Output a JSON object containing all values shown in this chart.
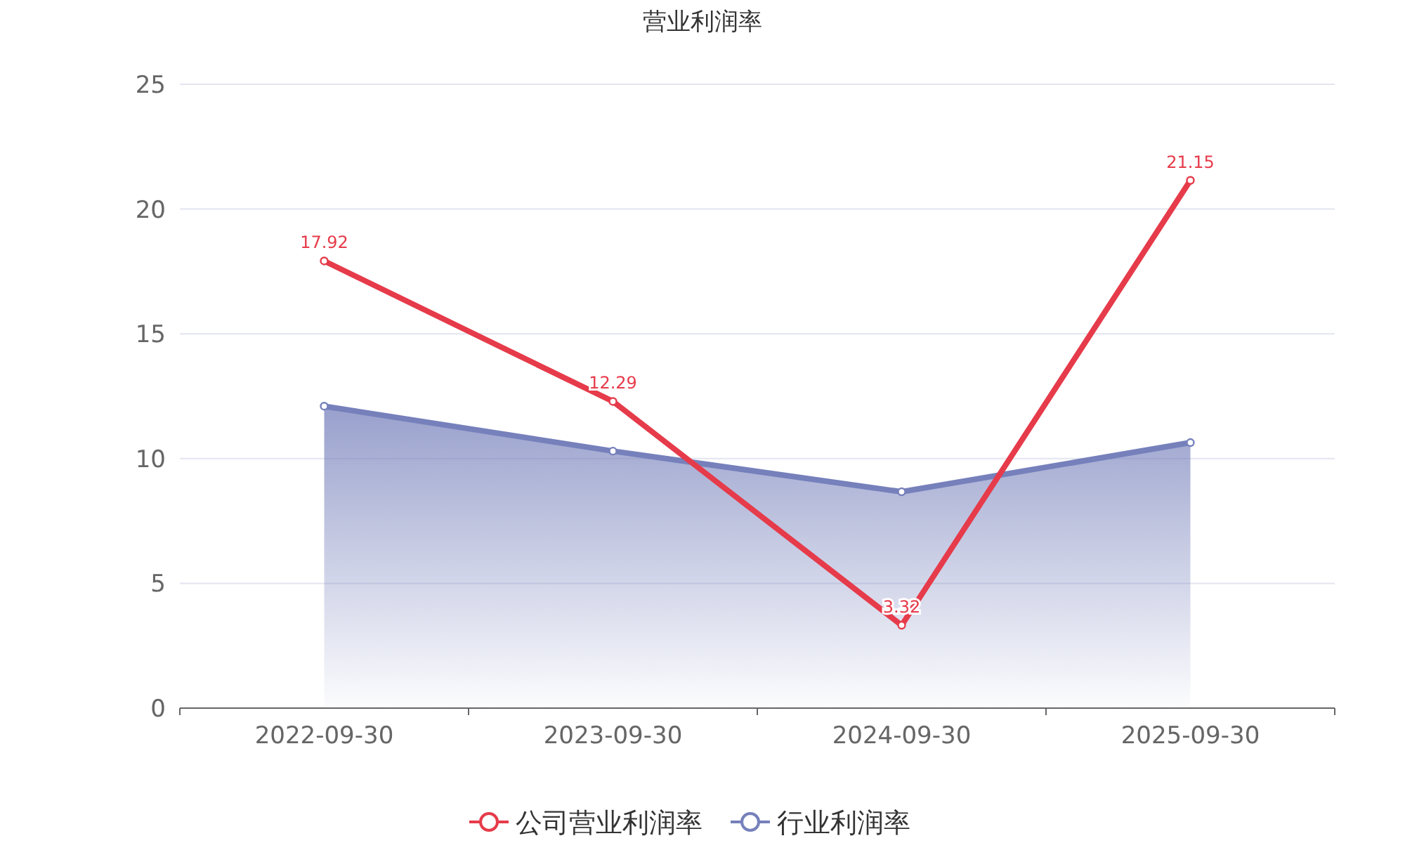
{
  "chart_data": {
    "type": "line",
    "title": "营业利润率",
    "categories": [
      "2022-09-30",
      "2023-09-30",
      "2024-09-30",
      "2025-09-30"
    ],
    "series": [
      {
        "name": "公司营业利润率",
        "color": "#e63b4a",
        "values": [
          17.92,
          12.29,
          3.32,
          21.15
        ],
        "value_labels": [
          "17.92",
          "12.29",
          "3.32",
          "21.15"
        ]
      },
      {
        "name": "行业利润率",
        "type": "area",
        "color": "#7680bb",
        "values": [
          12.1,
          10.3,
          8.67,
          10.64
        ]
      }
    ],
    "ylim": [
      0,
      25
    ],
    "yticks": [
      0,
      5,
      10,
      15,
      20,
      25
    ],
    "grid": "y",
    "legend": "bottom",
    "marker": "circle"
  }
}
